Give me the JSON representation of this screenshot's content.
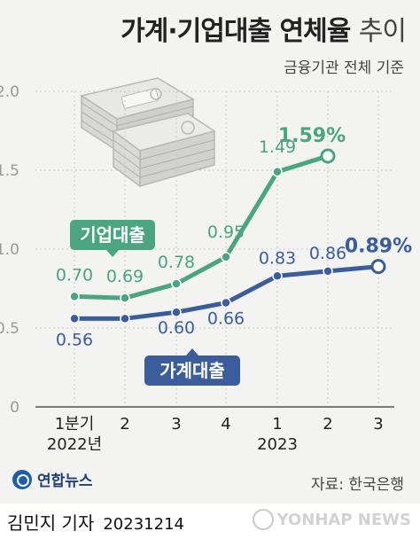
{
  "header": {
    "title_bold": "가계·기업대출 연체율",
    "title_light": "추이",
    "subtitle": "금융기관 전체 기준"
  },
  "source": "자료: 한국은행",
  "logo_text": "연합뉴스",
  "footer": {
    "reporter": "김민지 기자",
    "date": "20231214",
    "watermark": "YONHAP NEWS"
  },
  "colors": {
    "corporate": "#4aa580",
    "household": "#3b5d9c",
    "grid": "#bbbbbb",
    "panel": "#f3f3f1"
  },
  "chart_data": {
    "type": "line",
    "categories": [
      "1분기",
      "2",
      "3",
      "4",
      "1",
      "2",
      "3"
    ],
    "year_labels": [
      {
        "text": "2022년",
        "index": 0
      },
      {
        "text": "2023",
        "index": 4
      }
    ],
    "ylim": [
      0,
      2.0
    ],
    "yticks": [
      "0",
      "0.5",
      "1.0",
      "1.5",
      "2.0"
    ],
    "grid": true,
    "series": [
      {
        "name": "기업대출",
        "color": "#4aa580",
        "values": [
          0.7,
          0.69,
          0.78,
          0.95,
          1.49,
          1.59,
          null
        ],
        "labels": [
          "0.70",
          "0.69",
          "0.78",
          "0.95",
          "1.49",
          "1.59%",
          ""
        ]
      },
      {
        "name": "가계대출",
        "color": "#3b5d9c",
        "values": [
          0.56,
          0.56,
          0.6,
          0.66,
          0.83,
          0.86,
          0.89
        ],
        "labels": [
          "0.56",
          "",
          "0.60",
          "0.66",
          "0.83",
          "0.86",
          "0.89%"
        ]
      }
    ]
  }
}
